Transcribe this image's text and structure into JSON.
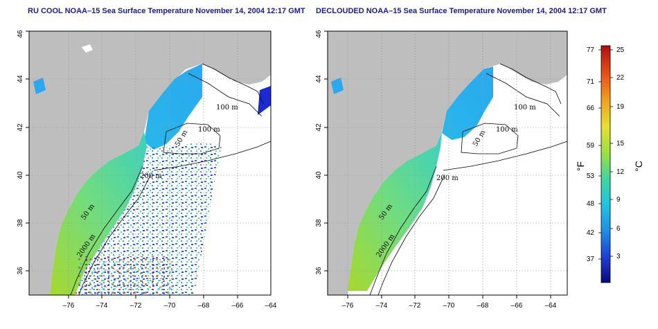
{
  "panels": [
    {
      "title": "RU COOL NOAA–15 Sea Surface Temperature November 14, 2004 12:17 GMT",
      "contour_labels": [
        "100 m",
        "100 m",
        "50 m",
        "200 m",
        "50 m",
        "2000 m"
      ]
    },
    {
      "title": "DECLOUDED NOAA–15 Sea Surface Temperature November 14, 2004 12:17 GMT",
      "contour_labels": [
        "100 m",
        "100 m",
        "50 m",
        "200 m",
        "50 m",
        "2000 m"
      ]
    }
  ],
  "axes": {
    "x_ticks": [
      "–76",
      "–74",
      "–72",
      "–70",
      "–68",
      "–66",
      "–64"
    ],
    "y_ticks": [
      "36",
      "38",
      "40",
      "42",
      "44",
      "46"
    ],
    "lon_range": [
      -77.2,
      -63.0
    ],
    "lat_range": [
      35.0,
      46.0
    ],
    "grid": "dotted"
  },
  "colorbar": {
    "fahrenheit_ticks": [
      "77",
      "71",
      "66",
      "59",
      "53",
      "48",
      "42",
      "37"
    ],
    "celsius_ticks": [
      "25",
      "22",
      "19",
      "15",
      "12",
      "9",
      "6",
      "3"
    ],
    "f_label": "°F",
    "c_label": "°C",
    "colors": [
      "#0a0a7a",
      "#1f3fd6",
      "#1f8fe6",
      "#20c4e0",
      "#40d6a0",
      "#9ee040",
      "#e6e030",
      "#f0a020",
      "#e85018",
      "#b00e0e"
    ]
  },
  "land_color": "#bebebe"
}
